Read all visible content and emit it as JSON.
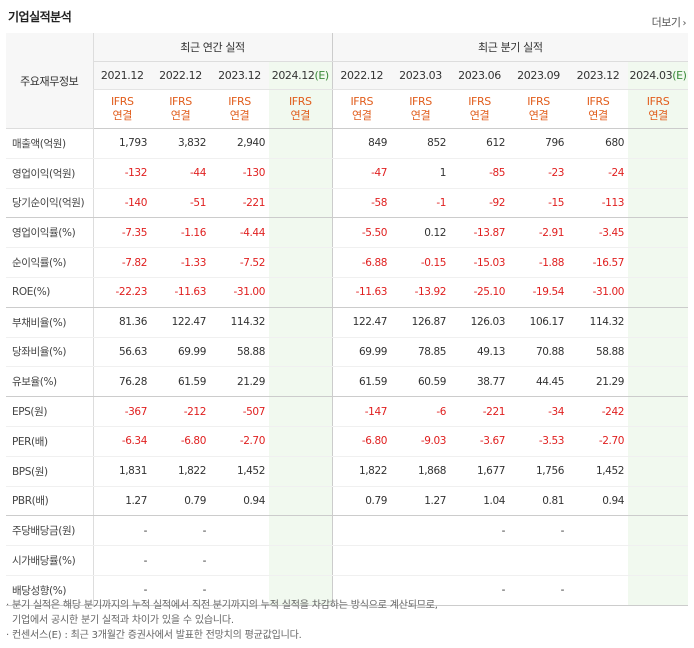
{
  "title": "기업실적분석",
  "more_label": "더보기",
  "more_arrow": "›",
  "header": {
    "item_label": "주요재무정보",
    "annual_group": "최근 연간 실적",
    "quarter_group": "최근 분기 실적",
    "annual_periods": [
      "2021.12",
      "2022.12",
      "2023.12",
      "2024.12"
    ],
    "quarter_periods": [
      "2022.12",
      "2023.03",
      "2023.06",
      "2023.09",
      "2023.12",
      "2024.03"
    ],
    "estimate_mark": "(E)",
    "ifrs_top": "IFRS",
    "ifrs_bottom": "연결"
  },
  "rows": [
    {
      "label": "매출액(억원)",
      "annual": [
        "1,793",
        "3,832",
        "2,940",
        ""
      ],
      "quarter": [
        "849",
        "852",
        "612",
        "796",
        "680",
        ""
      ]
    },
    {
      "label": "영업이익(억원)",
      "annual": [
        "-132",
        "-44",
        "-130",
        ""
      ],
      "quarter": [
        "-47",
        "1",
        "-85",
        "-23",
        "-24",
        ""
      ]
    },
    {
      "label": "당기순이익(억원)",
      "annual": [
        "-140",
        "-51",
        "-221",
        ""
      ],
      "quarter": [
        "-58",
        "-1",
        "-92",
        "-15",
        "-113",
        ""
      ]
    },
    {
      "label": "영업이익률(%)",
      "annual": [
        "-7.35",
        "-1.16",
        "-4.44",
        ""
      ],
      "quarter": [
        "-5.50",
        "0.12",
        "-13.87",
        "-2.91",
        "-3.45",
        ""
      ]
    },
    {
      "label": "순이익률(%)",
      "annual": [
        "-7.82",
        "-1.33",
        "-7.52",
        ""
      ],
      "quarter": [
        "-6.88",
        "-0.15",
        "-15.03",
        "-1.88",
        "-16.57",
        ""
      ]
    },
    {
      "label": "ROE(%)",
      "annual": [
        "-22.23",
        "-11.63",
        "-31.00",
        ""
      ],
      "quarter": [
        "-11.63",
        "-13.92",
        "-25.10",
        "-19.54",
        "-31.00",
        ""
      ]
    },
    {
      "label": "부채비율(%)",
      "annual": [
        "81.36",
        "122.47",
        "114.32",
        ""
      ],
      "quarter": [
        "122.47",
        "126.87",
        "126.03",
        "106.17",
        "114.32",
        ""
      ]
    },
    {
      "label": "당좌비율(%)",
      "annual": [
        "56.63",
        "69.99",
        "58.88",
        ""
      ],
      "quarter": [
        "69.99",
        "78.85",
        "49.13",
        "70.88",
        "58.88",
        ""
      ]
    },
    {
      "label": "유보율(%)",
      "annual": [
        "76.28",
        "61.59",
        "21.29",
        ""
      ],
      "quarter": [
        "61.59",
        "60.59",
        "38.77",
        "44.45",
        "21.29",
        ""
      ]
    },
    {
      "label": "EPS(원)",
      "annual": [
        "-367",
        "-212",
        "-507",
        ""
      ],
      "quarter": [
        "-147",
        "-6",
        "-221",
        "-34",
        "-242",
        ""
      ]
    },
    {
      "label": "PER(배)",
      "annual": [
        "-6.34",
        "-6.80",
        "-2.70",
        ""
      ],
      "quarter": [
        "-6.80",
        "-9.03",
        "-3.67",
        "-3.53",
        "-2.70",
        ""
      ]
    },
    {
      "label": "BPS(원)",
      "annual": [
        "1,831",
        "1,822",
        "1,452",
        ""
      ],
      "quarter": [
        "1,822",
        "1,868",
        "1,677",
        "1,756",
        "1,452",
        ""
      ]
    },
    {
      "label": "PBR(배)",
      "annual": [
        "1.27",
        "0.79",
        "0.94",
        ""
      ],
      "quarter": [
        "0.79",
        "1.27",
        "1.04",
        "0.81",
        "0.94",
        ""
      ]
    },
    {
      "label": "주당배당금(원)",
      "annual": [
        "-",
        "-",
        "",
        ""
      ],
      "quarter": [
        "",
        "",
        "-",
        "-",
        "",
        ""
      ]
    },
    {
      "label": "시가배당률(%)",
      "annual": [
        "-",
        "-",
        "",
        ""
      ],
      "quarter": [
        "",
        "",
        "",
        "",
        "",
        ""
      ]
    },
    {
      "label": "배당성향(%)",
      "annual": [
        "-",
        "-",
        "",
        ""
      ],
      "quarter": [
        "",
        "",
        "-",
        "-",
        "",
        ""
      ]
    }
  ],
  "notes": [
    "· 분기 실적은 해당 분기까지의 누적 실적에서 직전 분기까지의 누적 실적을 차감하는 방식으로 계산되므로,",
    "  기업에서 공시한 분기 실적과 차이가 있을 수 있습니다.",
    "· 컨센서스(E) : 최근 3개월간 증권사에서 발표한 전망치의 평균값입니다."
  ],
  "colors": {
    "negative": "#e02020",
    "ifrs": "#e15d1c",
    "estimate_bg": "#f1f9ef",
    "estimate_mark": "#3a8a3a"
  }
}
